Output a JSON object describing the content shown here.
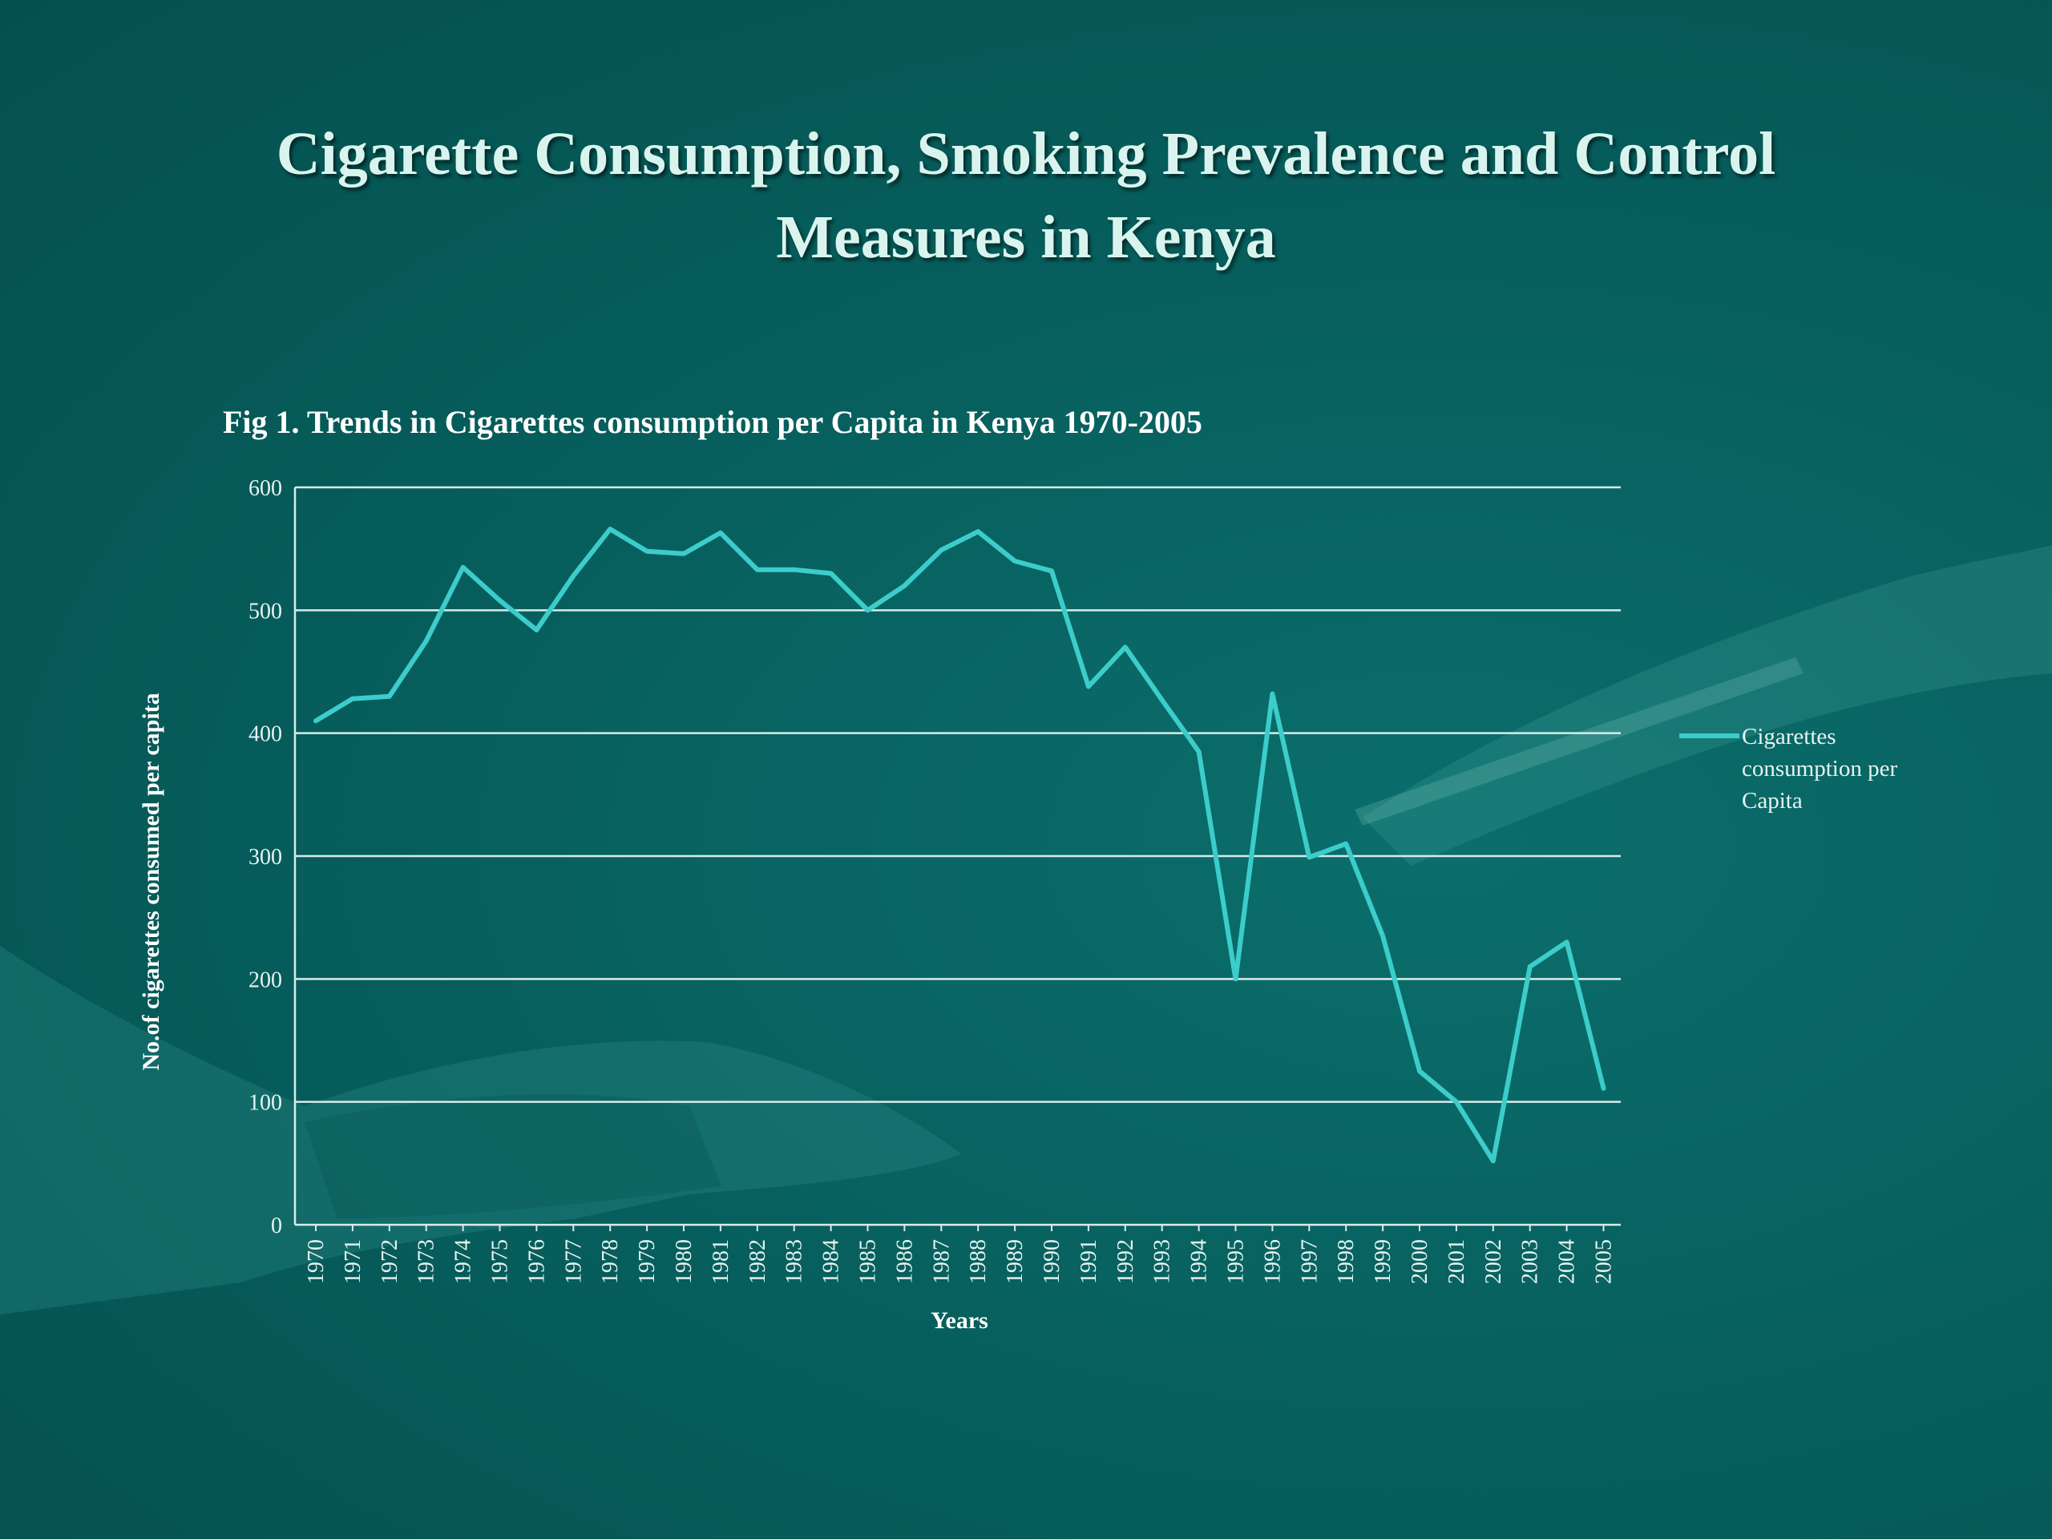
{
  "slide": {
    "title_line1": "Cigarette Consumption, Smoking Prevalence and Control",
    "title_line2": "Measures in Kenya"
  },
  "colors": {
    "line": "#3ccdcb",
    "grid": "#d8ece9",
    "text": "#e6f3f1"
  },
  "chart_data": {
    "type": "line",
    "title": "Fig 1. Trends in Cigarettes consumption per Capita in Kenya 1970-2005",
    "xlabel": "Years",
    "ylabel": "No.of cigarettes consumed per capita",
    "ylim": [
      0,
      600
    ],
    "yticks": [
      0,
      100,
      200,
      300,
      400,
      500,
      600
    ],
    "grid": true,
    "legend_position": "right",
    "categories": [
      "1970",
      "1971",
      "1972",
      "1973",
      "1974",
      "1975",
      "1976",
      "1977",
      "1978",
      "1979",
      "1980",
      "1981",
      "1982",
      "1983",
      "1984",
      "1985",
      "1986",
      "1987",
      "1988",
      "1989",
      "1990",
      "1991",
      "1992",
      "1993",
      "1994",
      "1995",
      "1996",
      "1997",
      "1998",
      "1999",
      "2000",
      "2001",
      "2002",
      "2003",
      "2004",
      "2005"
    ],
    "series": [
      {
        "name": "Cigarettes consumption per Capita",
        "legend_lines": [
          "Cigarettes",
          "consumption per",
          "Capita"
        ],
        "values": [
          410,
          428,
          430,
          475,
          535,
          508,
          484,
          528,
          566,
          548,
          546,
          563,
          533,
          533,
          530,
          500,
          520,
          549,
          564,
          540,
          532,
          438,
          470,
          427,
          385,
          200,
          432,
          299,
          310,
          235,
          125,
          100,
          52,
          210,
          230,
          111
        ]
      }
    ]
  }
}
